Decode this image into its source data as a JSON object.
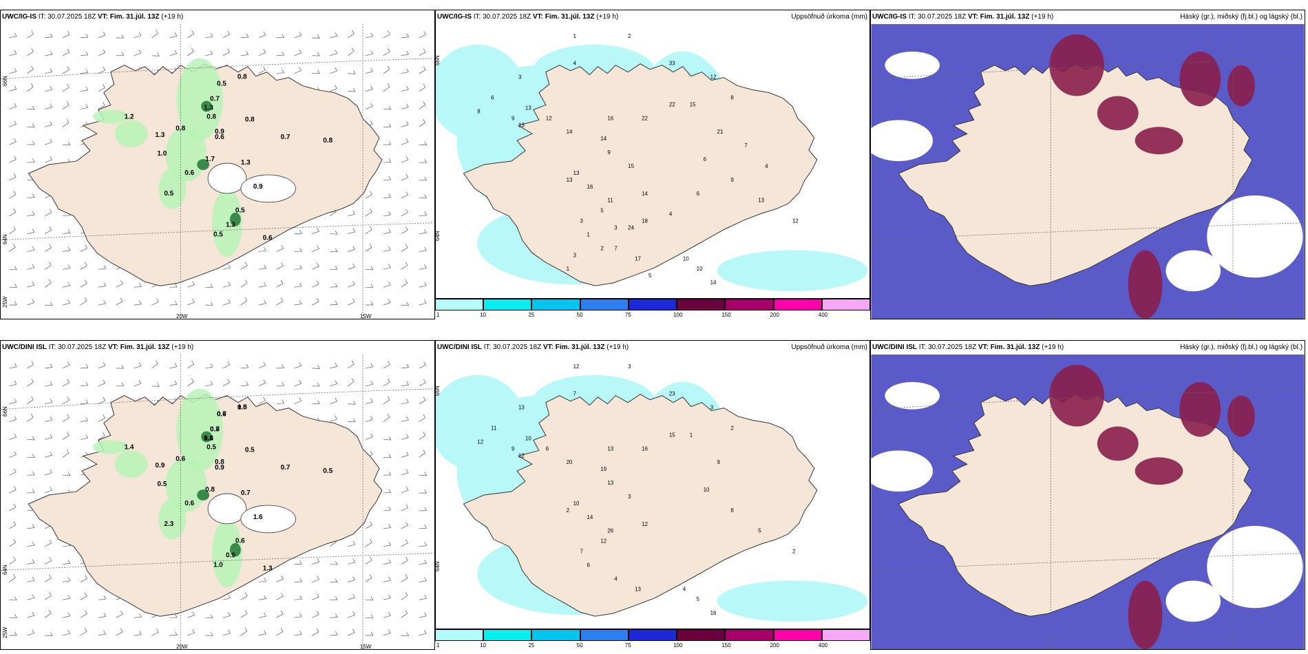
{
  "rows": [
    {
      "model": "UWC/IG-IS",
      "issue": "IT: 30.07.2025 18Z",
      "valid_label": "VT:",
      "valid": "Fim. 31.júl. 13Z",
      "lead": "(+19 h)",
      "lat_labels": [
        "66N",
        "64N",
        "25W"
      ],
      "lon_labels": [
        "20W",
        "15W"
      ],
      "left_values": [
        "0.8",
        "0.5",
        "0.7",
        "1.3",
        "0.8",
        "0.8",
        "0.9",
        "0.6",
        "1.2",
        "1.3",
        "0.7",
        "0.8",
        "1.0",
        "1.7",
        "1.3",
        "0.6",
        "0.9",
        "0.5",
        "0.5",
        "1.3",
        "0.5",
        "0.6",
        "0.8"
      ],
      "precip_values": [
        "1",
        "2",
        "4",
        "3",
        "6",
        "8",
        "9",
        "13",
        "12",
        "13",
        "14",
        "16",
        "22",
        "22",
        "14",
        "9",
        "13",
        "15",
        "13",
        "16",
        "14",
        "11",
        "5",
        "3",
        "1",
        "7",
        "17",
        "10",
        "10",
        "14",
        "33",
        "12",
        "8",
        "15",
        "21",
        "6",
        "9",
        "13",
        "12",
        "4",
        "7",
        "6",
        "4",
        "18",
        "24",
        "3",
        "2",
        "3",
        "1",
        "5"
      ]
    },
    {
      "model": "UWC/DINI ISL",
      "issue": "IT: 30.07.2025 18Z",
      "valid_label": "VT:",
      "valid": "Fim. 31.júl. 13Z",
      "lead": "(+19 h)",
      "lat_labels": [
        "66N",
        "64N",
        "25W"
      ],
      "lon_labels": [
        "20W",
        "15W"
      ],
      "left_values": [
        "0.8",
        "0.6",
        "0.7",
        "0.8",
        "0.5",
        "0.6",
        "0.8",
        "0.9",
        "1.4",
        "0.9",
        "0.7",
        "0.5",
        "0.5",
        "0.8",
        "0.7",
        "0.6",
        "1.6",
        "2.3",
        "0.6",
        "0.9",
        "1.0",
        "1.3",
        "0.5",
        "1.5",
        "0.7",
        "0.8",
        "1.1"
      ],
      "precip_values": [
        "12",
        "3",
        "7",
        "13",
        "11",
        "12",
        "9",
        "10",
        "6",
        "12",
        "20",
        "13",
        "15",
        "16",
        "19",
        "13",
        "10",
        "3",
        "2",
        "14",
        "12",
        "26",
        "12",
        "7",
        "6",
        "4",
        "13",
        "4",
        "5",
        "16",
        "23",
        "3",
        "2",
        "1",
        "9",
        "10",
        "8",
        "5",
        "2"
      ]
    }
  ],
  "precip_title": "Uppsöfnuð úrkoma (mm)",
  "cloud_title": "Háský (gr.), miðský (fj.bl.) og lágský (bl.)",
  "colorbar": {
    "ticks": [
      "1",
      "10",
      "25",
      "50",
      "75",
      "100",
      "150",
      "200",
      "400"
    ],
    "colors": [
      "#b3fbfb",
      "#00f0f0",
      "#00c6ee",
      "#2e7ef0",
      "#1b2ad6",
      "#6b0040",
      "#a8006b",
      "#ff00aa",
      "#f6a8f6"
    ]
  },
  "colors": {
    "land": "#f5e6d8",
    "precip_light": "#b8f8f8",
    "wind_green": "#b7f3b7",
    "cloud_high": "#8a1e4c",
    "cloud_mid": "#5a5ac8",
    "cloud_low": "#3a8af0"
  }
}
